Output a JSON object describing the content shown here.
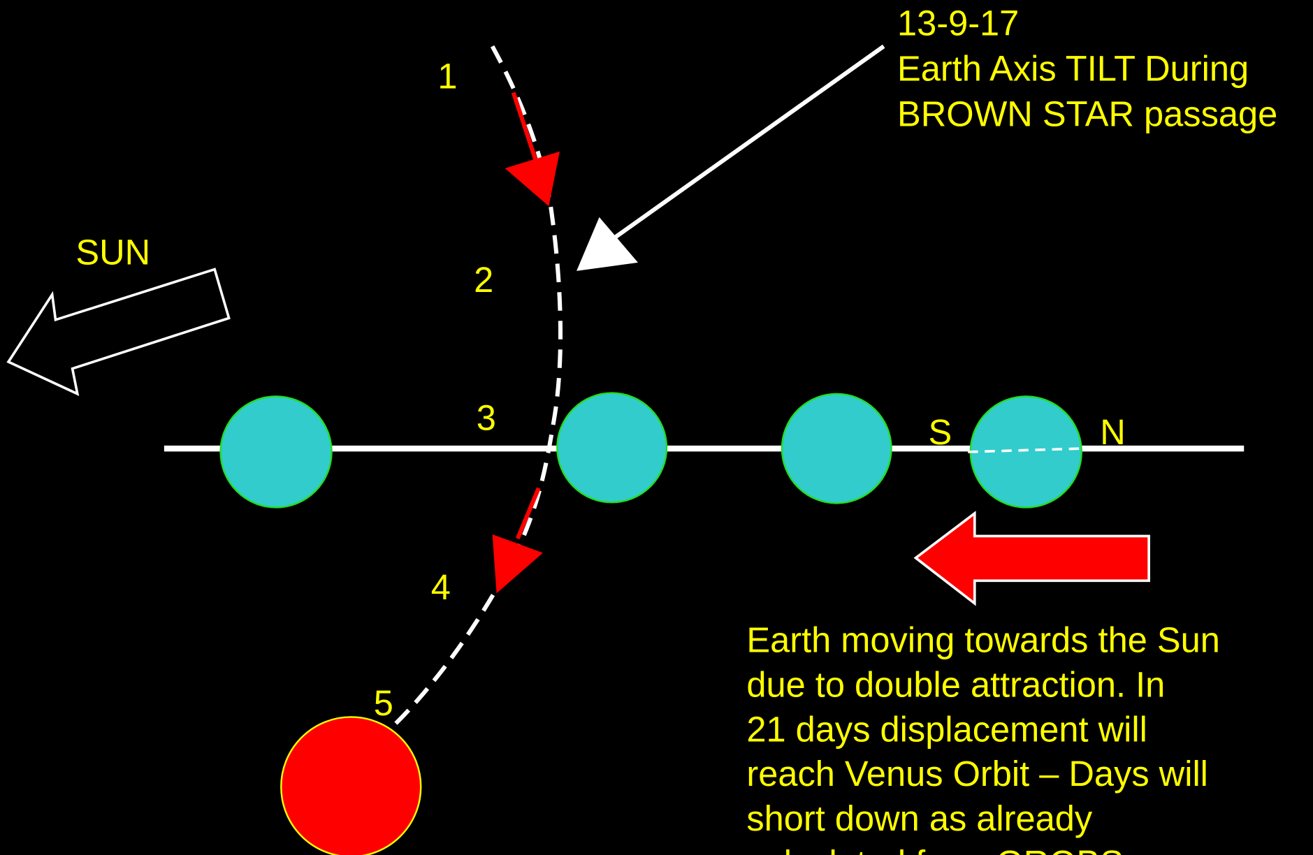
{
  "annotation": {
    "date": "13-9-17",
    "lines": [
      "Earth Axis TILT During",
      "BROWN STAR passage"
    ]
  },
  "sun_label": "SUN",
  "positions": [
    "1",
    "2",
    "3",
    "4",
    "5"
  ],
  "poles": {
    "south": "S",
    "north": "N"
  },
  "description": [
    "Earth moving towards the Sun",
    "due to double attraction. In",
    "21 days displacement will",
    "reach Venus Orbit – Days will",
    "short down as already",
    "calculated from GROBS"
  ]
}
